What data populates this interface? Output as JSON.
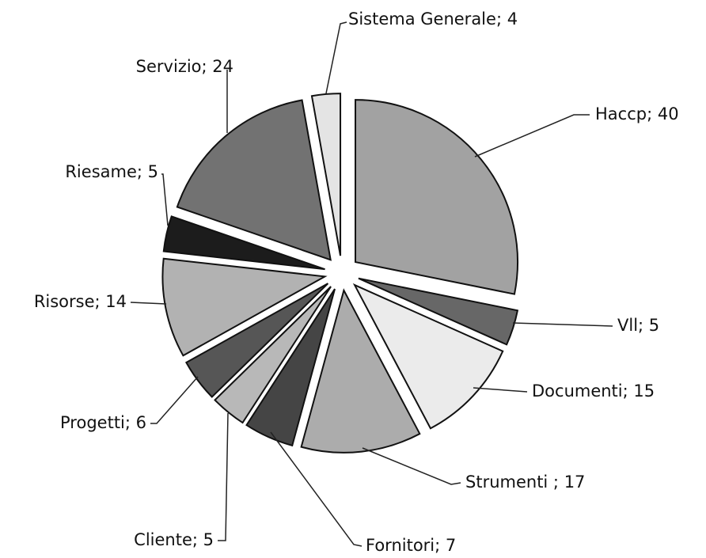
{
  "chart_data": {
    "type": "pie",
    "values": [
      40,
      5,
      15,
      17,
      7,
      5,
      6,
      14,
      5,
      24,
      4
    ],
    "value_labels": [
      "Haccp; 40",
      "Vll; 5",
      "Documenti; 15",
      "Strumenti ; 17",
      "Fornitori; 7",
      "Cliente; 5",
      "Progetti; 6",
      "Risorse; 14",
      "Riesame; 5",
      "Servizio; 24",
      "Sistema Generale; 4"
    ],
    "colors": [
      "#a2a2a2",
      "#676767",
      "#ebebeb",
      "#acacac",
      "#454545",
      "#b8b8b8",
      "#565656",
      "#b2b2b2",
      "#1c1c1c",
      "#727272",
      "#e4e4e4"
    ]
  }
}
